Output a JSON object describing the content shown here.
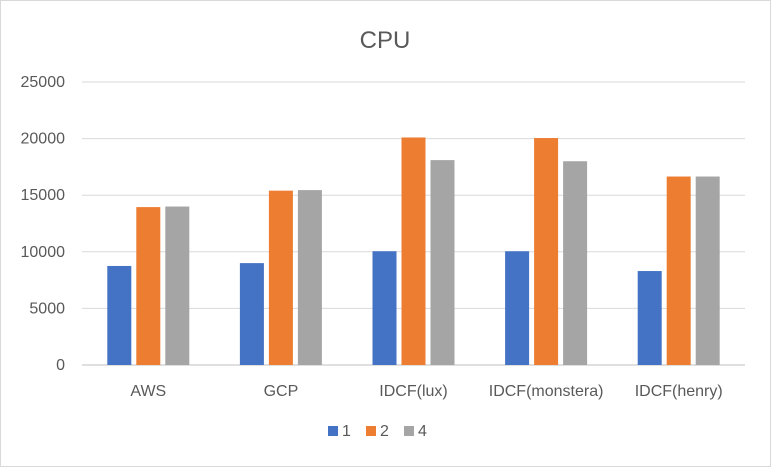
{
  "chart_data": {
    "type": "bar",
    "title": "CPU",
    "xlabel": "",
    "ylabel": "",
    "categories": [
      "AWS",
      "GCP",
      "IDCF(lux)",
      "IDCF(monstera)",
      "IDCF(henry)"
    ],
    "series": [
      {
        "name": "1",
        "color": "#4472c4",
        "values": [
          8750,
          9000,
          10050,
          10050,
          8300
        ]
      },
      {
        "name": "2",
        "color": "#ed7d31",
        "values": [
          13950,
          15400,
          20100,
          20050,
          16650
        ]
      },
      {
        "name": "4",
        "color": "#a5a5a5",
        "values": [
          14000,
          15450,
          18100,
          18000,
          16650
        ]
      }
    ],
    "ylim": [
      0,
      25000
    ],
    "yticks": [
      0,
      5000,
      10000,
      15000,
      20000,
      25000
    ],
    "grid": true,
    "legend_position": "bottom"
  }
}
